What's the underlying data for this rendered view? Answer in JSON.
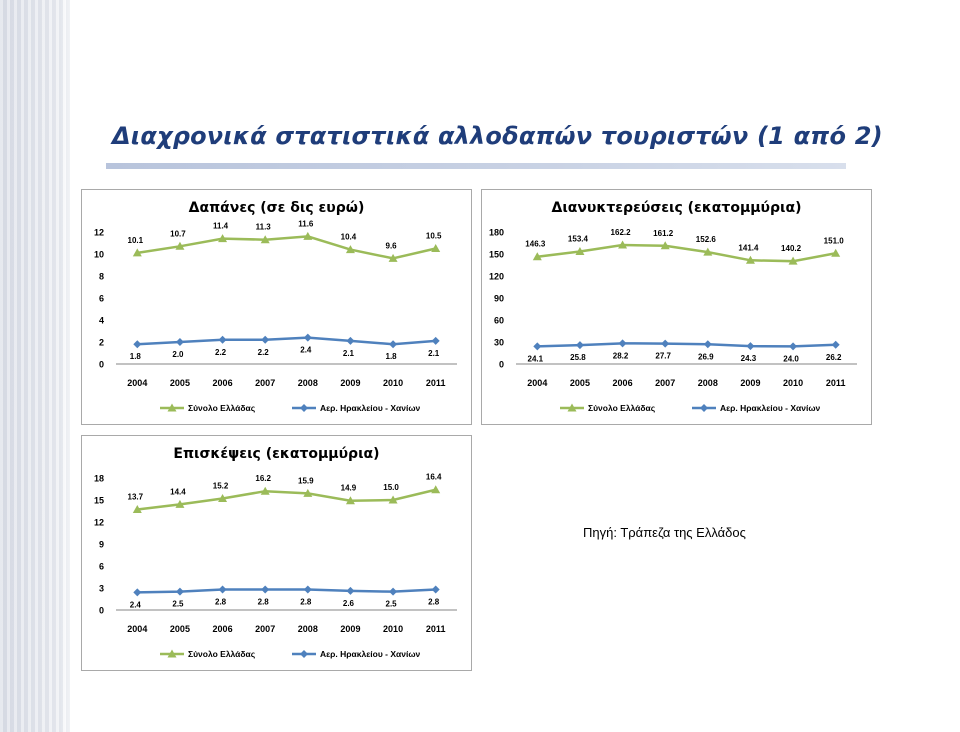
{
  "title": "Διαχρονικά στατιστικά αλλοδαπών τουριστών (1 από 2)",
  "source": "Πηγή: Τράπεζα της Ελλάδος",
  "colors": {
    "green": "#9bbb59",
    "blue": "#4f81bd",
    "title": "#1f3d7a"
  },
  "chart_data": [
    {
      "type": "line",
      "title": "Δαπάνες (σε δις ευρώ)",
      "categories": [
        "2004",
        "2005",
        "2006",
        "2007",
        "2008",
        "2009",
        "2010",
        "2011"
      ],
      "ylim": [
        0,
        12
      ],
      "yticks": [
        0,
        2,
        4,
        6,
        8,
        10,
        12
      ],
      "legend_position": "bottom",
      "grid": false,
      "series": [
        {
          "name": "Σύνολο Ελλάδας",
          "color": "#9bbb59",
          "marker": "triangle",
          "values": [
            10.1,
            10.7,
            11.4,
            11.3,
            11.6,
            10.4,
            9.6,
            10.5
          ],
          "labels": [
            "10.1",
            "10.7",
            "11.4",
            "11.3",
            "11.6",
            "10.4",
            "9.6",
            "10.5"
          ]
        },
        {
          "name": "Αερ. Ηρακλείου - Χανίων",
          "color": "#4f81bd",
          "marker": "diamond",
          "values": [
            1.8,
            2.0,
            2.2,
            2.2,
            2.4,
            2.1,
            1.8,
            2.1
          ],
          "labels": [
            "1.8",
            "2.0",
            "2.2",
            "2.2",
            "2.4",
            "2.1",
            "1.8",
            "2.1"
          ]
        }
      ]
    },
    {
      "type": "line",
      "title": "Διανυκτερεύσεις (εκατομμύρια)",
      "categories": [
        "2004",
        "2005",
        "2006",
        "2007",
        "2008",
        "2009",
        "2010",
        "2011"
      ],
      "ylim": [
        0,
        180
      ],
      "yticks": [
        0,
        30,
        60,
        90,
        120,
        150,
        180
      ],
      "legend_position": "bottom",
      "grid": false,
      "series": [
        {
          "name": "Σύνολο Ελλάδας",
          "color": "#9bbb59",
          "marker": "triangle",
          "values": [
            146.3,
            153.4,
            162.2,
            161.2,
            152.6,
            141.4,
            140.2,
            151.0
          ],
          "labels": [
            "146.3",
            "153.4",
            "162.2",
            "161.2",
            "152.6",
            "141.4",
            "140.2",
            "151.0"
          ]
        },
        {
          "name": "Αερ. Ηρακλείου - Χανίων",
          "color": "#4f81bd",
          "marker": "diamond",
          "values": [
            24.1,
            25.8,
            28.2,
            27.7,
            26.9,
            24.3,
            24.0,
            26.2
          ],
          "labels": [
            "24.1",
            "25.8",
            "28.2",
            "27.7",
            "26.9",
            "24.3",
            "24.0",
            "26.2"
          ]
        }
      ]
    },
    {
      "type": "line",
      "title": "Επισκέψεις (εκατομμύρια)",
      "categories": [
        "2004",
        "2005",
        "2006",
        "2007",
        "2008",
        "2009",
        "2010",
        "2011"
      ],
      "ylim": [
        0,
        18
      ],
      "yticks": [
        0,
        3,
        6,
        9,
        12,
        15,
        18
      ],
      "legend_position": "bottom",
      "grid": false,
      "series": [
        {
          "name": "Σύνολο Ελλάδας",
          "color": "#9bbb59",
          "marker": "triangle",
          "values": [
            13.7,
            14.4,
            15.2,
            16.2,
            15.9,
            14.9,
            15.0,
            16.4
          ],
          "labels": [
            "13.7",
            "14.4",
            "15.2",
            "16.2",
            "15.9",
            "14.9",
            "15.0",
            "16.4"
          ]
        },
        {
          "name": "Αερ. Ηρακλείου - Χανίων",
          "color": "#4f81bd",
          "marker": "diamond",
          "values": [
            2.4,
            2.5,
            2.8,
            2.8,
            2.8,
            2.6,
            2.5,
            2.8
          ],
          "labels": [
            "2.4",
            "2.5",
            "2.8",
            "2.8",
            "2.8",
            "2.6",
            "2.5",
            "2.8"
          ]
        }
      ]
    }
  ]
}
